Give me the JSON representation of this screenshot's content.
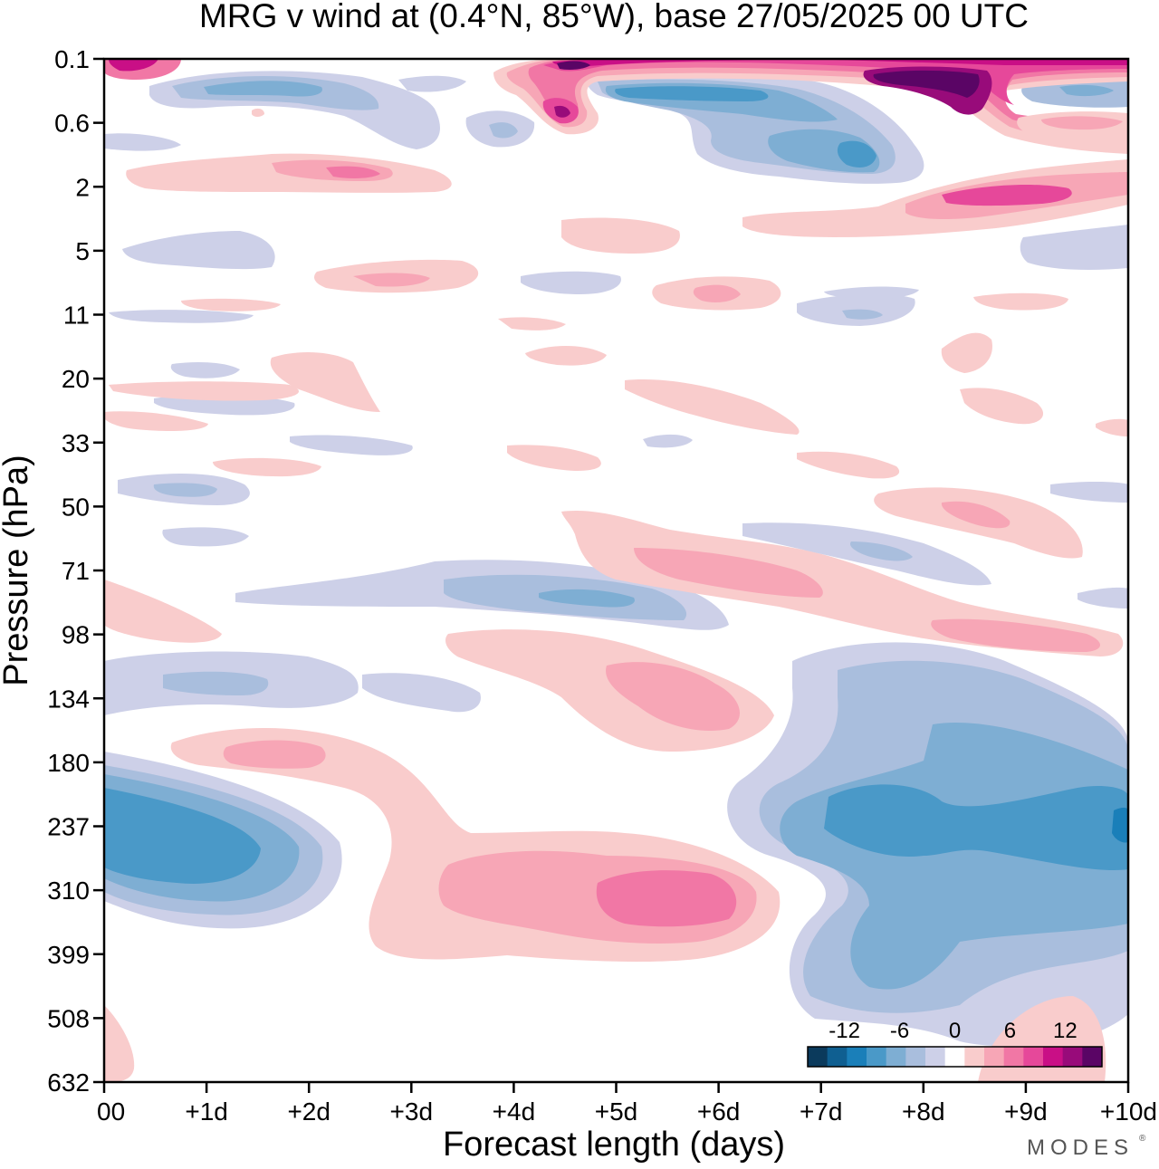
{
  "chart_data": {
    "type": "heatmap",
    "title": "MRG v wind at (0.4°N, 85°W),  base 27/05/2025  00 UTC",
    "xlabel": "Forecast length (days)",
    "ylabel": "Pressure (hPa)",
    "x_ticks": [
      "00",
      "+1d",
      "+2d",
      "+3d",
      "+4d",
      "+5d",
      "+6d",
      "+7d",
      "+8d",
      "+9d",
      "+10d"
    ],
    "x_range_days": [
      0,
      10
    ],
    "y_ticks": [
      "0.1",
      "0.6",
      "2",
      "5",
      "11",
      "20",
      "33",
      "50",
      "71",
      "98",
      "134",
      "180",
      "237",
      "310",
      "399",
      "508",
      "632"
    ],
    "colorbar": {
      "labels": [
        "-12",
        "-6",
        "0",
        "6",
        "12"
      ],
      "levels": [
        -16,
        -14,
        -12,
        -10,
        -8,
        -6,
        -4,
        -2,
        2,
        4,
        6,
        8,
        10,
        12,
        14,
        16
      ],
      "colors": [
        "#0b3a5c",
        "#0f5f91",
        "#1a7fb9",
        "#4a99c8",
        "#7eaed3",
        "#a9bedd",
        "#cdd0e8",
        "#ffffff",
        "#f9cccc",
        "#f7a6b6",
        "#f177a5",
        "#e6489a",
        "#c90f86",
        "#980b7a",
        "#5a0565"
      ]
    },
    "regions": [
      {
        "sign": "negative",
        "intensity": -10,
        "day_range": [
          0.0,
          2.0
        ],
        "pressure_range": [
          180,
          399
        ],
        "peak_hPa": 237
      },
      {
        "sign": "negative",
        "intensity": -10,
        "day_range": [
          6.2,
          10.0
        ],
        "pressure_range": [
          98,
          508
        ],
        "peak_hPa": 237
      },
      {
        "sign": "negative",
        "intensity": -6,
        "day_range": [
          1.3,
          6.1
        ],
        "pressure_range": [
          71,
          98
        ]
      },
      {
        "sign": "negative",
        "intensity": -6,
        "day_range": [
          0.0,
          3.6
        ],
        "pressure_range": [
          98,
          180
        ]
      },
      {
        "sign": "positive",
        "intensity": 8,
        "day_range": [
          2.6,
          6.6
        ],
        "pressure_range": [
          237,
          399
        ],
        "peak_hPa": 310
      },
      {
        "sign": "positive",
        "intensity": 6,
        "day_range": [
          0.7,
          2.6
        ],
        "pressure_range": [
          134,
          237
        ]
      },
      {
        "sign": "positive",
        "intensity": 6,
        "day_range": [
          3.4,
          6.6
        ],
        "pressure_range": [
          98,
          180
        ]
      },
      {
        "sign": "positive",
        "intensity": 6,
        "day_range": [
          4.5,
          9.8
        ],
        "pressure_range": [
          50,
          98
        ]
      },
      {
        "sign": "positive",
        "intensity": 4,
        "day_range": [
          0.0,
          1.0
        ],
        "pressure_range": [
          71,
          134
        ]
      },
      {
        "sign": "positive",
        "intensity": 4,
        "day_range": [
          8.2,
          9.9
        ],
        "pressure_range": [
          508,
          632
        ]
      },
      {
        "sign": "positive",
        "intensity": 4,
        "day_range": [
          0.0,
          0.3
        ],
        "pressure_range": [
          508,
          632
        ]
      },
      {
        "sign": "positive",
        "intensity": 12,
        "day_range": [
          6.0,
          10.0
        ],
        "pressure_range": [
          1,
          3
        ]
      },
      {
        "sign": "positive",
        "intensity": 6,
        "day_range": [
          0.2,
          3.4
        ],
        "pressure_range": [
          1,
          3
        ]
      },
      {
        "sign": "positive",
        "intensity": 16,
        "day_range": [
          4.0,
          10.0
        ],
        "pressure_range": [
          0.1,
          0.6
        ]
      },
      {
        "sign": "negative",
        "intensity": -10,
        "day_range": [
          5.8,
          7.8
        ],
        "pressure_range": [
          0.3,
          2
        ]
      },
      {
        "sign": "negative",
        "intensity": -8,
        "day_range": [
          0.7,
          3.3
        ],
        "pressure_range": [
          0.2,
          0.8
        ]
      }
    ]
  },
  "branding": {
    "watermark": "MODES"
  }
}
